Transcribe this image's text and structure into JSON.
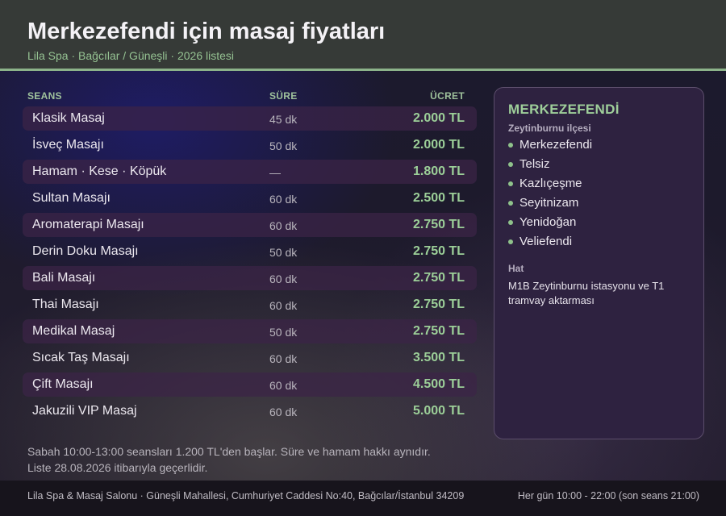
{
  "header": {
    "title": "Merkezefendi için masaj fiyatları",
    "subtitle": "Lila Spa · Bağcılar / Güneşli · 2026 listesi"
  },
  "table": {
    "columns": {
      "session": "SEANS",
      "duration": "SÜRE",
      "price": "ÜCRET"
    },
    "rows": [
      {
        "name": "Klasik Masaj",
        "duration": "45 dk",
        "price": "2.000 TL"
      },
      {
        "name": "İsveç Masajı",
        "duration": "50 dk",
        "price": "2.000 TL"
      },
      {
        "name": "Hamam · Kese · Köpük",
        "duration": "—",
        "price": "1.800 TL"
      },
      {
        "name": "Sultan Masajı",
        "duration": "60 dk",
        "price": "2.500 TL"
      },
      {
        "name": "Aromaterapi Masajı",
        "duration": "60 dk",
        "price": "2.750 TL"
      },
      {
        "name": "Derin Doku Masajı",
        "duration": "50 dk",
        "price": "2.750 TL"
      },
      {
        "name": "Bali Masajı",
        "duration": "60 dk",
        "price": "2.750 TL"
      },
      {
        "name": "Thai Masajı",
        "duration": "60 dk",
        "price": "2.750 TL"
      },
      {
        "name": "Medikal Masaj",
        "duration": "50 dk",
        "price": "2.750 TL"
      },
      {
        "name": "Sıcak Taş Masajı",
        "duration": "60 dk",
        "price": "3.500 TL"
      },
      {
        "name": "Çift Masajı",
        "duration": "60 dk",
        "price": "4.500 TL"
      },
      {
        "name": "Jakuzili VIP Masaj",
        "duration": "60 dk",
        "price": "5.000 TL"
      }
    ]
  },
  "notes": {
    "line1": "Sabah 10:00-13:00 seansları 1.200 TL'den başlar. Süre ve hamam hakkı aynıdır.",
    "line2": "Liste 28.08.2026 itibarıyla geçerlidir."
  },
  "sidebar": {
    "title": "MERKEZEFENDİ",
    "subtitle": "Zeytinburnu ilçesi",
    "items": [
      "Merkezefendi",
      "Telsiz",
      "Kazlıçeşme",
      "Seyitnizam",
      "Yenidoğan",
      "Veliefendi"
    ],
    "transit_label": "Hat",
    "transit_text": "M1B Zeytinburnu istasyonu ve T1 tramvay aktarması"
  },
  "footer": {
    "address": "Lila Spa & Masaj Salonu · Güneşli Mahallesi, Cumhuriyet Caddesi No:40, Bağcılar/İstanbul 34209",
    "hours": "Her gün 10:00 - 22:00 (son seans 21:00)"
  },
  "colors": {
    "accent_green": "#9ccf98",
    "header_bg": "#363a37",
    "sidebar_bg": "#2e2240",
    "row_shade": "#3c2446"
  }
}
